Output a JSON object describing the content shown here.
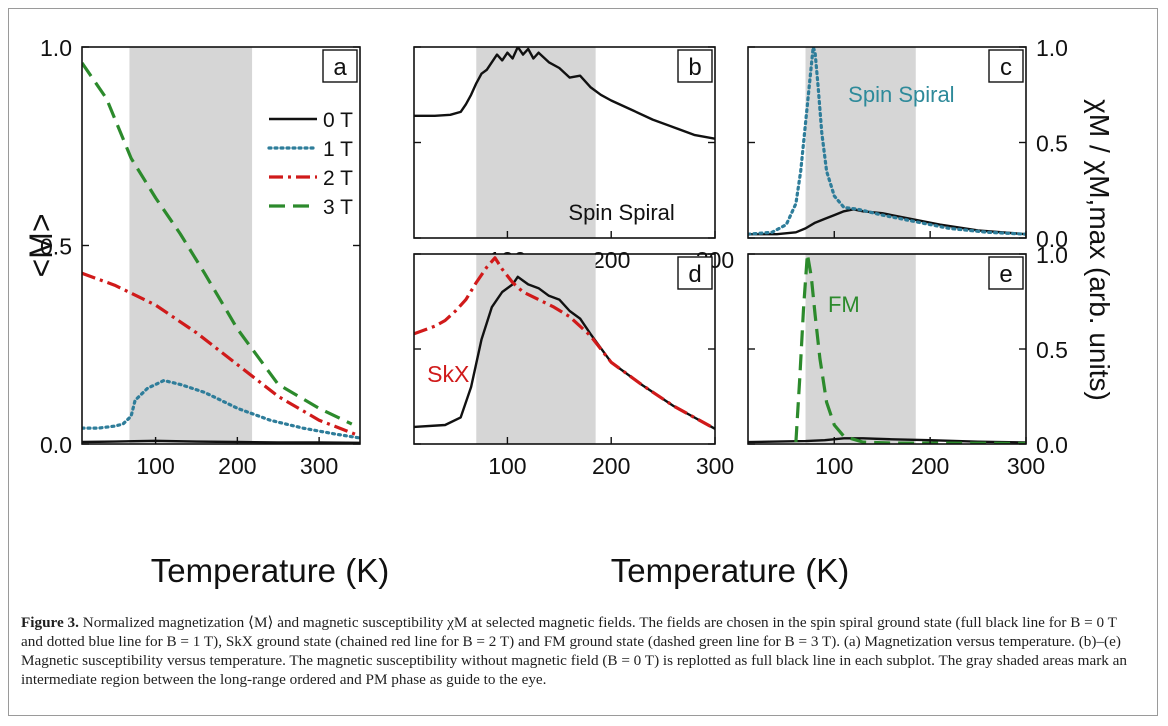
{
  "figure": {
    "caption_label": "Figure 3.",
    "caption_text": "Normalized magnetization ⟨M⟩ and magnetic susceptibility χM at selected magnetic fields. The fields are chosen in the spin spiral ground state (full black line for B = 0 T and dotted blue line for B = 1 T), SkX ground state (chained red line for B = 2 T) and FM ground state (dashed green line for B = 3 T). (a) Magnetization versus temperature. (b)–(e) Magnetic susceptibility versus temperature. The magnetic susceptibility without magnetic field (B = 0 T) is replotted as full black line in each subplot. The gray shaded areas mark an intermediate region between the long-range ordered and PM phase as guide to the eye."
  },
  "colors": {
    "B0T": "#111111",
    "B1T": "#2e7d9a",
    "B2T": "#d01a1a",
    "B3T": "#2c8a2c",
    "shade": "#d6d6d6",
    "skx_label": "#d01a1a",
    "spiral_label_c": "#2e8a9a",
    "fm_label": "#2c8a2c"
  },
  "chart_data": [
    {
      "panel": "a",
      "type": "line",
      "xlabel": "Temperature (K)",
      "ylabel": "<M>",
      "xlim": [
        10,
        350
      ],
      "ylim": [
        0,
        1
      ],
      "xticks": [
        "100",
        "200",
        "300"
      ],
      "yticks": [
        "0.0",
        "0.5",
        "1.0"
      ],
      "shade": [
        68,
        218
      ],
      "legend": {
        "placement": "top-right"
      },
      "series": [
        {
          "name": "0 T",
          "style": "solid",
          "color_key": "B0T",
          "x": [
            10,
            50,
            100,
            150,
            200,
            250,
            300,
            350
          ],
          "y": [
            0.005,
            0.006,
            0.008,
            0.006,
            0.005,
            0.004,
            0.004,
            0.003
          ]
        },
        {
          "name": "1 T",
          "style": "dotted",
          "color_key": "B1T",
          "x": [
            10,
            30,
            50,
            60,
            70,
            75,
            90,
            110,
            130,
            160,
            200,
            240,
            280,
            320,
            350
          ],
          "y": [
            0.04,
            0.04,
            0.045,
            0.05,
            0.07,
            0.11,
            0.14,
            0.16,
            0.15,
            0.13,
            0.09,
            0.06,
            0.04,
            0.025,
            0.015
          ]
        },
        {
          "name": "2 T",
          "style": "dashdot",
          "color_key": "B2T",
          "x": [
            10,
            50,
            100,
            150,
            200,
            250,
            300,
            350
          ],
          "y": [
            0.43,
            0.4,
            0.35,
            0.28,
            0.2,
            0.12,
            0.06,
            0.02
          ]
        },
        {
          "name": "3 T",
          "style": "dashed",
          "color_key": "B3T",
          "x": [
            10,
            40,
            70,
            100,
            130,
            160,
            200,
            250,
            300,
            340
          ],
          "y": [
            0.96,
            0.87,
            0.72,
            0.62,
            0.53,
            0.43,
            0.29,
            0.15,
            0.09,
            0.05
          ]
        }
      ]
    },
    {
      "panel": "b",
      "type": "line",
      "xlim": [
        10,
        300
      ],
      "ylim": [
        0,
        1
      ],
      "xticks": [
        "100",
        "200",
        "300"
      ],
      "yticks": [],
      "shade": [
        70,
        185
      ],
      "annotation": "Spin Spiral",
      "series": [
        {
          "name": "",
          "style": "solid",
          "color_key": "B0T",
          "x": [
            10,
            30,
            45,
            55,
            60,
            65,
            70,
            75,
            80,
            85,
            90,
            95,
            100,
            105,
            110,
            115,
            120,
            125,
            130,
            140,
            150,
            160,
            170,
            180,
            190,
            200,
            220,
            240,
            260,
            280,
            300
          ],
          "y": [
            0.64,
            0.64,
            0.645,
            0.66,
            0.7,
            0.75,
            0.81,
            0.86,
            0.88,
            0.92,
            0.96,
            0.93,
            0.97,
            0.94,
            1.0,
            0.96,
            0.99,
            0.94,
            0.97,
            0.92,
            0.89,
            0.84,
            0.85,
            0.79,
            0.75,
            0.72,
            0.67,
            0.62,
            0.58,
            0.54,
            0.52
          ]
        }
      ]
    },
    {
      "panel": "c",
      "type": "line",
      "xlim": [
        10,
        300
      ],
      "ylim": [
        0,
        1
      ],
      "xticks": [],
      "yticks": [
        "0.0",
        "0.5",
        "1.0"
      ],
      "ylabel_right": "χM / χM,max (arb. units)",
      "shade": [
        70,
        185
      ],
      "annotation": "Spin Spiral",
      "series": [
        {
          "name": "",
          "style": "solid",
          "color_key": "B0T",
          "x": [
            10,
            40,
            60,
            70,
            80,
            90,
            100,
            110,
            120,
            130,
            150,
            180,
            210,
            250,
            300
          ],
          "y": [
            0.02,
            0.02,
            0.03,
            0.05,
            0.08,
            0.1,
            0.12,
            0.14,
            0.15,
            0.14,
            0.13,
            0.1,
            0.07,
            0.04,
            0.02
          ]
        },
        {
          "name": "",
          "style": "dotted",
          "color_key": "B1T",
          "x": [
            10,
            35,
            50,
            60,
            65,
            70,
            75,
            78,
            80,
            83,
            87,
            92,
            100,
            110,
            125,
            150,
            180,
            220,
            260,
            300
          ],
          "y": [
            0.02,
            0.03,
            0.07,
            0.18,
            0.35,
            0.6,
            0.85,
            1.0,
            0.97,
            0.8,
            0.55,
            0.35,
            0.22,
            0.16,
            0.15,
            0.12,
            0.09,
            0.05,
            0.03,
            0.02
          ]
        }
      ]
    },
    {
      "panel": "d",
      "type": "line",
      "xlabel": "Temperature (K)",
      "xlim": [
        10,
        300
      ],
      "ylim": [
        0,
        1
      ],
      "xticks": [
        "100",
        "200",
        "300"
      ],
      "yticks": [],
      "shade": [
        70,
        185
      ],
      "annotation": "SkX",
      "series": [
        {
          "name": "",
          "style": "solid",
          "color_key": "B0T",
          "x": [
            10,
            40,
            55,
            65,
            75,
            85,
            95,
            105,
            110,
            115,
            120,
            130,
            140,
            150,
            160,
            170,
            180,
            200,
            230,
            260,
            300
          ],
          "y": [
            0.09,
            0.1,
            0.14,
            0.3,
            0.55,
            0.72,
            0.8,
            0.84,
            0.88,
            0.86,
            0.84,
            0.82,
            0.78,
            0.76,
            0.7,
            0.66,
            0.58,
            0.43,
            0.31,
            0.2,
            0.08
          ]
        },
        {
          "name": "",
          "style": "dashdot",
          "color_key": "B2T",
          "x": [
            10,
            20,
            30,
            40,
            50,
            60,
            70,
            80,
            88,
            95,
            105,
            115,
            130,
            145,
            160,
            180,
            200,
            230,
            260,
            300
          ],
          "y": [
            0.58,
            0.6,
            0.62,
            0.65,
            0.7,
            0.76,
            0.85,
            0.93,
            0.98,
            0.92,
            0.85,
            0.8,
            0.76,
            0.72,
            0.67,
            0.57,
            0.43,
            0.31,
            0.2,
            0.08
          ]
        }
      ]
    },
    {
      "panel": "e",
      "type": "line",
      "xlim": [
        10,
        300
      ],
      "ylim": [
        0,
        1
      ],
      "xticks": [
        "100",
        "200",
        "300"
      ],
      "yticks": [
        "0.0",
        "0.5",
        "1.0"
      ],
      "shade": [
        70,
        185
      ],
      "annotation": "FM",
      "series": [
        {
          "name": "",
          "style": "solid",
          "color_key": "B0T",
          "x": [
            10,
            70,
            90,
            110,
            130,
            160,
            200,
            250,
            300
          ],
          "y": [
            0.01,
            0.015,
            0.02,
            0.03,
            0.03,
            0.025,
            0.02,
            0.012,
            0.008
          ]
        },
        {
          "name": "",
          "style": "dashed",
          "color_key": "B3T",
          "x": [
            60,
            64,
            68,
            72,
            76,
            80,
            85,
            92,
            100,
            110,
            130,
            160,
            200,
            250,
            300
          ],
          "y": [
            0.01,
            0.35,
            0.72,
            1.0,
            0.88,
            0.68,
            0.45,
            0.22,
            0.1,
            0.04,
            0.01,
            0.005,
            0.005,
            0.004,
            0.003
          ]
        }
      ]
    }
  ]
}
